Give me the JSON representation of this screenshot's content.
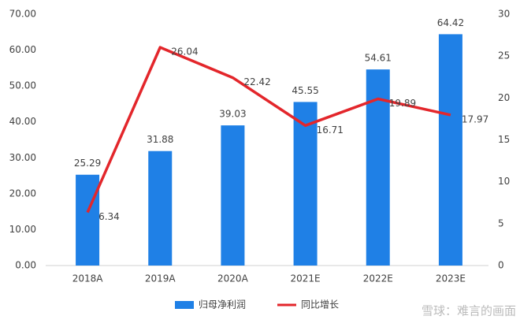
{
  "chart_data": {
    "type": "bar",
    "categories": [
      "2018A",
      "2019A",
      "2020A",
      "2021E",
      "2022E",
      "2023E"
    ],
    "series": [
      {
        "name": "归母净利润",
        "color": "#1f80e6",
        "values": [
          25.29,
          31.88,
          39.03,
          45.55,
          54.61,
          64.42
        ]
      },
      {
        "name": "同比增长",
        "color": "#e3262b",
        "type": "line",
        "axis": "y2",
        "values": [
          6.34,
          26.04,
          22.42,
          16.71,
          19.89,
          17.97
        ]
      }
    ],
    "ylim": [
      0,
      70
    ],
    "yticks": [
      {
        "value": 0,
        "label": "0.00"
      },
      {
        "value": 10,
        "label": "10.00"
      },
      {
        "value": 20,
        "label": "20.00"
      },
      {
        "value": 30,
        "label": "30.00"
      },
      {
        "value": 40,
        "label": "40.00"
      },
      {
        "value": 50,
        "label": "50.00"
      },
      {
        "value": 60,
        "label": "60.00"
      },
      {
        "value": 70,
        "label": "70.00"
      }
    ],
    "y2lim": [
      0,
      30
    ],
    "y2ticks": [
      0,
      5,
      10,
      15,
      20,
      25,
      30
    ],
    "legend": "bottom",
    "watermark": "雪球：难言的画面"
  }
}
